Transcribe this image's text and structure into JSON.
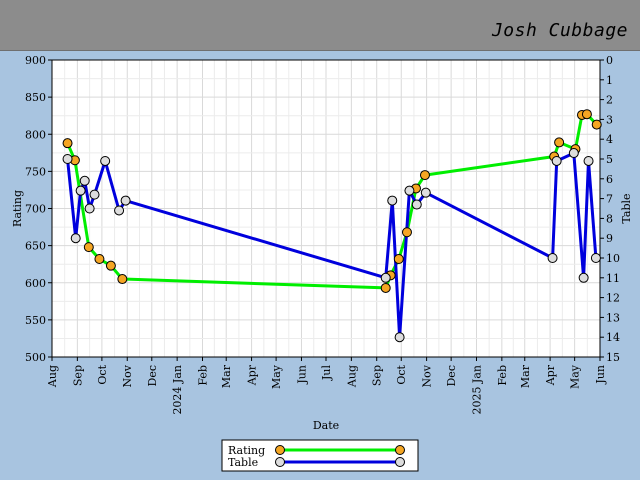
{
  "header": {
    "signature": "Josh Cubbage"
  },
  "chart_data": {
    "type": "line",
    "xlabel": "Date",
    "ylabel": "Rating",
    "y2label": "Table",
    "xlim": [
      "2023-08-01",
      "2025-06-01"
    ],
    "ylim": [
      500,
      900
    ],
    "y2lim": [
      0,
      15
    ],
    "y2_inverted": true,
    "grid": true,
    "legend_position": "bottom-center",
    "x_tick_labels": [
      "Aug",
      "Sep",
      "Oct",
      "Nov",
      "Dec",
      "2024 Jan",
      "Feb",
      "Mar",
      "Apr",
      "May",
      "Jun",
      "Jul",
      "Aug",
      "Sep",
      "Oct",
      "Nov",
      "Dec",
      "2025 Jan",
      "Feb",
      "Mar",
      "Apr",
      "May",
      "Jun"
    ],
    "y_tick_labels": [
      "500",
      "550",
      "600",
      "650",
      "700",
      "750",
      "800",
      "850",
      "900"
    ],
    "y2_tick_labels": [
      "0",
      "1",
      "2",
      "3",
      "4",
      "5",
      "6",
      "7",
      "8",
      "9",
      "10",
      "11",
      "12",
      "13",
      "14",
      "15"
    ],
    "series": [
      {
        "name": "Rating",
        "axis": "left",
        "line_color": "#00ee00",
        "marker_color": "#f5a623",
        "x": [
          "2023-08-20",
          "2023-08-29",
          "2023-09-15",
          "2023-09-28",
          "2023-10-12",
          "2023-10-26",
          "2024-09-12",
          "2024-09-18",
          "2024-09-28",
          "2024-10-08",
          "2024-10-19",
          "2024-10-30",
          "2025-04-06",
          "2025-04-12",
          "2025-05-02",
          "2025-05-10",
          "2025-05-16",
          "2025-05-28"
        ],
        "values": [
          788,
          765,
          648,
          632,
          623,
          605,
          593,
          610,
          632,
          668,
          727,
          745,
          770,
          789,
          780,
          826,
          827,
          813
        ]
      },
      {
        "name": "Table",
        "axis": "right",
        "line_color": "#0000dd",
        "marker_color": "#dddddd",
        "x": [
          "2023-08-20",
          "2023-08-30",
          "2023-09-05",
          "2023-09-10",
          "2023-09-16",
          "2023-09-22",
          "2023-10-05",
          "2023-10-22",
          "2023-10-30",
          "2024-09-12",
          "2024-09-20",
          "2024-09-29",
          "2024-10-11",
          "2024-10-20",
          "2024-10-31",
          "2025-04-04",
          "2025-04-09",
          "2025-04-30",
          "2025-05-12",
          "2025-05-18",
          "2025-05-27"
        ],
        "values": [
          5,
          9,
          6.6,
          6.1,
          7.5,
          6.8,
          5.1,
          7.6,
          7.1,
          11,
          7.1,
          14,
          6.6,
          7.3,
          6.7,
          10,
          5.1,
          4.7,
          11,
          5.1,
          10
        ]
      }
    ]
  }
}
